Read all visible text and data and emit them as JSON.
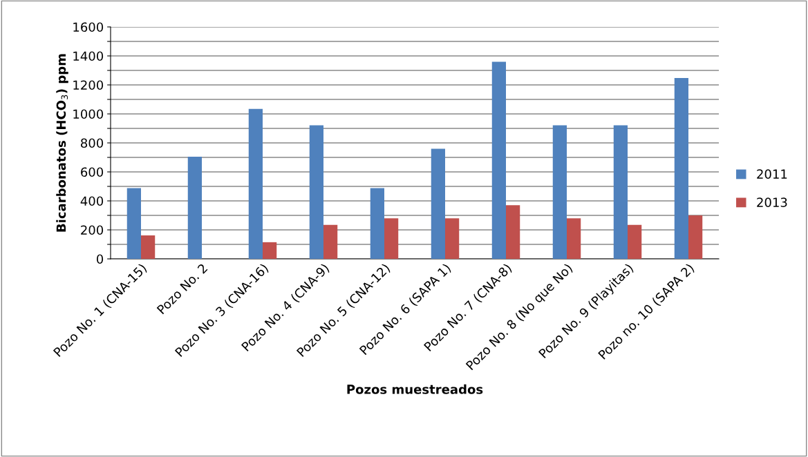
{
  "chart_data": {
    "type": "bar",
    "xlabel": "Pozos muestreados",
    "ylabel": "Bicarbonatos (HCO$_{3}$) ppm",
    "categories": [
      "Pozo No. 1 (CNA-15)",
      "Pozo No. 2",
      "Pozo No. 3 (CNA-16)",
      "Pozo No. 4 (CNA-9)",
      "Pozo No. 5 (CNA-12)",
      "Pozo No. 6 (SAPA 1)",
      "Pozo No. 7 (CNA-8)",
      "Pozo No. 8 (No que No)",
      "Pozo No. 9 (Playitas)",
      "Pozo no. 10 (SAPA 2)"
    ],
    "series": [
      {
        "name": "2011",
        "color": "#4f81bd",
        "values": [
          488,
          705,
          1035,
          922,
          488,
          760,
          1360,
          922,
          922,
          1248
        ]
      },
      {
        "name": "2013",
        "color": "#c0504d",
        "values": [
          162,
          null,
          115,
          235,
          280,
          280,
          370,
          280,
          235,
          300
        ]
      }
    ],
    "ylim": [
      0,
      1600
    ],
    "yticks": [
      0,
      {
        "value": 100,
        "label": null
      },
      200,
      {
        "value": 300,
        "label": null
      },
      400,
      {
        "value": 500,
        "label": null
      },
      600,
      {
        "value": 700,
        "label": null
      },
      800,
      {
        "value": 900,
        "label": null
      },
      1000,
      {
        "value": 1100,
        "label": null
      },
      1200,
      {
        "value": 1300,
        "label": null
      },
      1400,
      {
        "value": 1500,
        "label": null
      },
      1600
    ],
    "grid": "y",
    "legend": "right"
  }
}
